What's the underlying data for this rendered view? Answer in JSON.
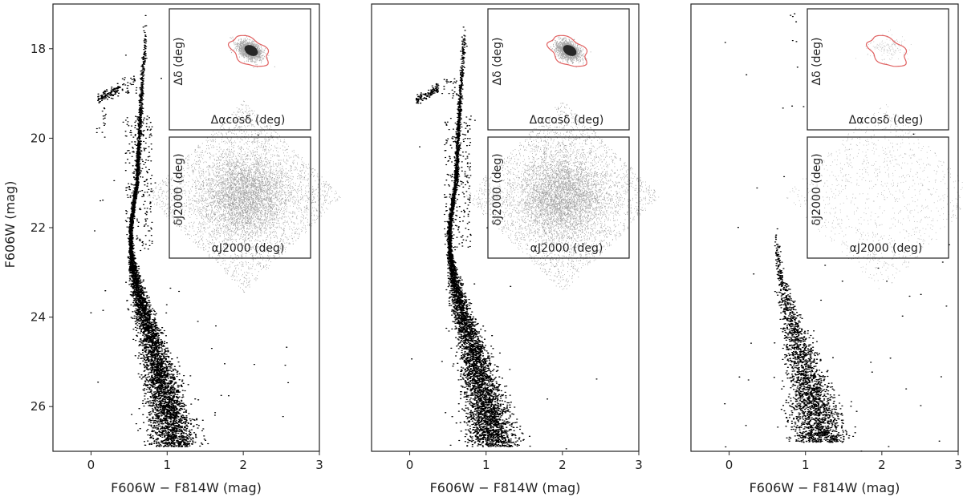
{
  "figure": {
    "xlabel": "F606W − F814W (mag)",
    "ylabel": "F606W (mag)"
  },
  "chart_data": [
    {
      "type": "scatter",
      "panel": "left",
      "title": "",
      "xlabel": "F606W − F814W (mag)",
      "ylabel": "F606W (mag)",
      "xlim": [
        -0.5,
        3.0
      ],
      "ylim": [
        27.0,
        17.0
      ],
      "y_inverted": true,
      "xticks": [
        "0",
        "1",
        "2",
        "3"
      ],
      "yticks": [
        "18",
        "20",
        "22",
        "24",
        "26"
      ],
      "grid": false,
      "description_points": [
        {
          "x": 0.72,
          "y": 17.0
        },
        {
          "x": 0.66,
          "y": 19.0
        },
        {
          "x": 0.62,
          "y": 20.5
        },
        {
          "x": 0.55,
          "y": 22.0
        },
        {
          "x": 0.6,
          "y": 23.0
        },
        {
          "x": 0.78,
          "y": 24.5
        },
        {
          "x": 0.95,
          "y": 25.6
        },
        {
          "x": 1.1,
          "y": 26.6
        }
      ],
      "horizontal_branch": [
        {
          "x": 0.05,
          "y": 19.2
        },
        {
          "x": 0.2,
          "y": 18.9
        },
        {
          "x": 0.45,
          "y": 18.75
        }
      ],
      "density": "dense",
      "insets": [
        {
          "xlabel": "Δαcosδ (deg)",
          "ylabel": "Δδ (deg)",
          "contour_color": "#e06060",
          "kind": "proper-motion"
        },
        {
          "xlabel": "αJ2000 (deg)",
          "ylabel": "δJ2000 (deg)",
          "kind": "sky",
          "density": "dense"
        }
      ]
    },
    {
      "type": "scatter",
      "panel": "middle",
      "title": "",
      "xlabel": "F606W − F814W (mag)",
      "ylabel": "",
      "xlim": [
        -0.5,
        3.0
      ],
      "ylim": [
        27.0,
        17.0
      ],
      "y_inverted": true,
      "xticks": [
        "0",
        "1",
        "2",
        "3"
      ],
      "grid": false,
      "density": "dense",
      "insets": [
        {
          "xlabel": "Δαcosδ (deg)",
          "ylabel": "Δδ (deg)",
          "contour_color": "#e06060",
          "kind": "proper-motion"
        },
        {
          "xlabel": "αJ2000 (deg)",
          "ylabel": "δJ2000 (deg)",
          "kind": "sky",
          "density": "dense"
        }
      ]
    },
    {
      "type": "scatter",
      "panel": "right",
      "title": "",
      "xlabel": "F606W − F814W (mag)",
      "ylabel": "",
      "xlim": [
        -0.5,
        3.0
      ],
      "ylim": [
        27.0,
        17.0
      ],
      "y_inverted": true,
      "xticks": [
        "0",
        "1",
        "2",
        "3"
      ],
      "grid": false,
      "density": "sparse",
      "insets": [
        {
          "xlabel": "Δαcosδ (deg)",
          "ylabel": "Δδ (deg)",
          "contour_color": "#e06060",
          "kind": "proper-motion"
        },
        {
          "xlabel": "αJ2000 (deg)",
          "ylabel": "δJ2000 (deg)",
          "kind": "sky",
          "density": "sparse"
        }
      ]
    }
  ]
}
